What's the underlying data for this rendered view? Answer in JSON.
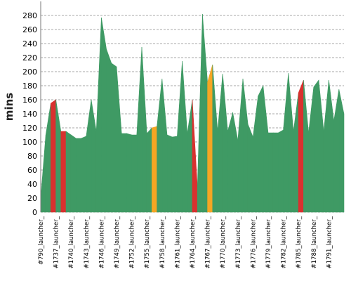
{
  "chart_data": {
    "type": "area",
    "ylabel": "mins",
    "xlabel": "",
    "ylim": [
      0,
      300
    ],
    "yticks": [
      0,
      20,
      40,
      60,
      80,
      100,
      120,
      140,
      160,
      180,
      200,
      220,
      240,
      260,
      280
    ],
    "grid": "horizontal-dashed",
    "legend": "none",
    "series_colors": {
      "success": "#3f9a64",
      "unstable": "#f6a623",
      "failure": "#d9312f"
    },
    "tick_labels": [
      "#790_launcher_",
      "#1737_launcher_",
      "#1740_launcher_",
      "#1743_launcher_",
      "#1746_launcher_",
      "#1749_launcher_",
      "#1752_launcher_",
      "#1755_launcher_",
      "#1758_launcher_",
      "#1761_launcher_",
      "#1764_launcher_",
      "#1767_launcher_",
      "#1770_launcher_",
      "#1773_launcher_",
      "#1776_launcher_",
      "#1779_launcher_",
      "#1782_launcher_",
      "#1785_launcher_",
      "#1788_launcher_",
      "#1791_launcher_"
    ],
    "x": [
      0,
      1,
      2,
      3,
      4,
      5,
      6,
      7,
      8,
      9,
      10,
      11,
      12,
      13,
      14,
      15,
      16,
      17,
      18,
      19,
      20,
      21,
      22,
      23,
      24,
      25,
      26,
      27,
      28,
      29,
      30,
      31,
      32,
      33,
      34,
      35,
      36,
      37,
      38,
      39,
      40,
      41,
      42,
      43,
      44,
      45,
      46,
      47,
      48,
      49,
      50,
      51,
      52,
      53,
      54,
      55,
      56,
      57,
      58,
      59,
      60
    ],
    "values": [
      20,
      110,
      155,
      160,
      115,
      115,
      110,
      105,
      105,
      108,
      160,
      115,
      277,
      232,
      212,
      207,
      112,
      112,
      110,
      110,
      235,
      112,
      120,
      122,
      190,
      110,
      107,
      108,
      215,
      112,
      160,
      35,
      282,
      185,
      210,
      115,
      197,
      115,
      142,
      102,
      190,
      125,
      107,
      165,
      180,
      113,
      113,
      113,
      117,
      198,
      115,
      170,
      188,
      113,
      178,
      188,
      115,
      188,
      130,
      175,
      140
    ],
    "status": [
      "success",
      "success",
      "success",
      "failure",
      "success",
      "failure",
      "success",
      "success",
      "success",
      "success",
      "success",
      "success",
      "success",
      "success",
      "success",
      "success",
      "success",
      "success",
      "success",
      "success",
      "success",
      "success",
      "success",
      "unstable",
      "success",
      "success",
      "success",
      "success",
      "success",
      "success",
      "success",
      "failure",
      "success",
      "success",
      "unstable",
      "success",
      "success",
      "success",
      "success",
      "success",
      "success",
      "success",
      "success",
      "success",
      "success",
      "success",
      "success",
      "success",
      "success",
      "success",
      "success",
      "success",
      "failure",
      "success",
      "success",
      "success",
      "success",
      "success",
      "success",
      "success",
      "success"
    ]
  }
}
